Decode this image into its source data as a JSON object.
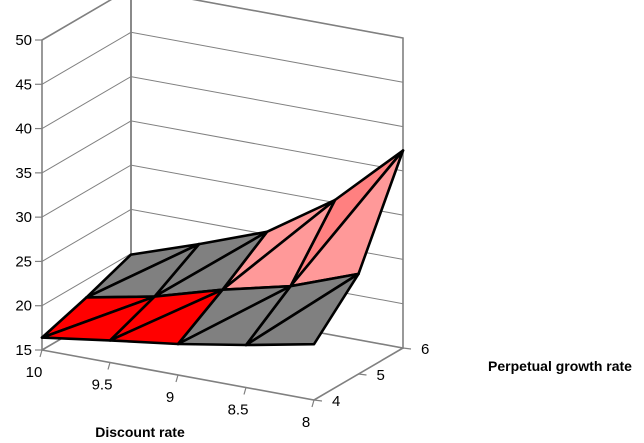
{
  "chart_data": {
    "type": "surface",
    "title": "",
    "xlabel": "Discount rate",
    "ylabel": "Perpetual growth rate",
    "zlabel": "",
    "x_ticks": [
      "10",
      "9.5",
      "9",
      "8.5",
      "8"
    ],
    "y_ticks": [
      "4",
      "5",
      "6"
    ],
    "z_ticks": [
      "15",
      "20",
      "25",
      "30",
      "35",
      "40",
      "45",
      "50"
    ],
    "zlim": [
      15,
      50
    ],
    "grid": true,
    "discount_rate": [
      10,
      9.5,
      9,
      8.5,
      8
    ],
    "growth_rate": [
      4,
      5,
      6
    ],
    "values": [
      [
        16.4,
        18.0,
        19.9
      ],
      [
        17.5,
        19.5,
        22.5
      ],
      [
        18.5,
        21.7,
        25.3
      ],
      [
        19.8,
        23.5,
        30.3
      ],
      [
        21.3,
        26.3,
        37.3
      ]
    ],
    "bands": [
      {
        "range": [
          15,
          20
        ],
        "color": "#ff0000"
      },
      {
        "range": [
          20,
          25
        ],
        "color": "#808080"
      },
      {
        "range": [
          25,
          30
        ],
        "color": "#ff9999"
      },
      {
        "range": [
          30,
          35
        ],
        "color": "#ff8080"
      },
      {
        "range": [
          35,
          40
        ],
        "color": "#000000"
      },
      {
        "range": [
          40,
          45
        ],
        "color": "#ffa8a8"
      },
      {
        "range": [
          45,
          50
        ],
        "color": "#c0c0c0"
      }
    ]
  }
}
